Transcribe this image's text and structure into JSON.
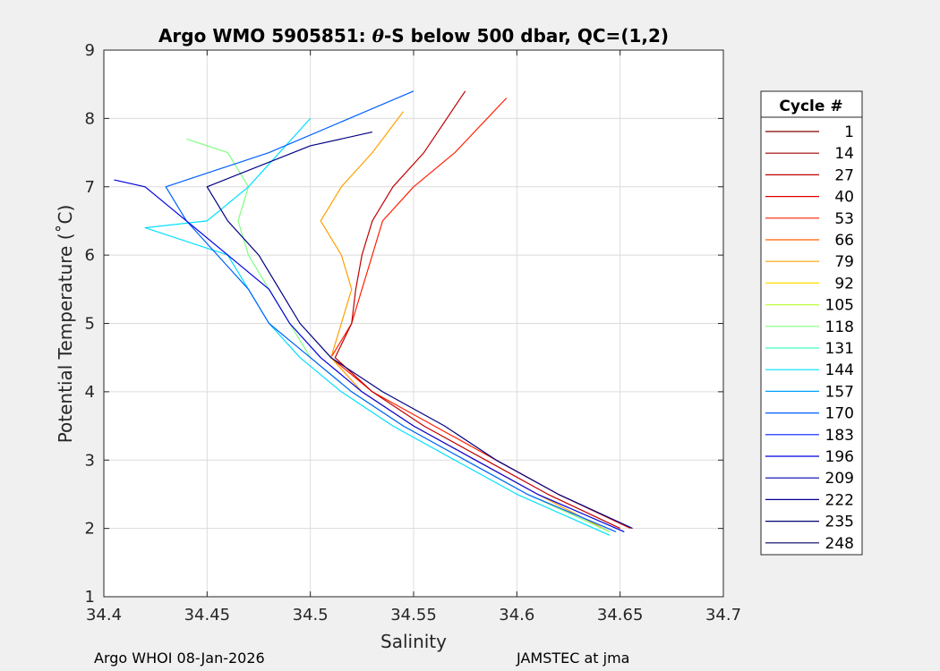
{
  "chart_data": {
    "type": "line",
    "title_parts": {
      "prefix": "Argo WMO 5905851: ",
      "theta": "θ",
      "suffix": "-S below 500 dbar,  QC=(1,2)"
    },
    "xlabel": "Salinity",
    "ylabel": "Potential Temperature (˚C)",
    "xlim": [
      34.4,
      34.7
    ],
    "ylim": [
      1,
      9
    ],
    "x_ticks": [
      34.4,
      34.45,
      34.5,
      34.55,
      34.6,
      34.65,
      34.7
    ],
    "x_tick_labels": [
      "34.4",
      "34.45",
      "34.5",
      "34.55",
      "34.6",
      "34.65",
      "34.7"
    ],
    "y_ticks": [
      1,
      2,
      3,
      4,
      5,
      6,
      7,
      8,
      9
    ],
    "y_tick_labels": [
      "1",
      "2",
      "3",
      "4",
      "5",
      "6",
      "7",
      "8",
      "9"
    ],
    "grid": true,
    "legend_title": "Cycle #",
    "legend_position": "right",
    "series": [
      {
        "name": "1",
        "color": "#800000"
      },
      {
        "name": "14",
        "color": "#a00000"
      },
      {
        "name": "27",
        "color": "#c00000"
      },
      {
        "name": "40",
        "color": "#e00000"
      },
      {
        "name": "53",
        "color": "#ff2000"
      },
      {
        "name": "66",
        "color": "#ff6000"
      },
      {
        "name": "79",
        "color": "#ffa000"
      },
      {
        "name": "92",
        "color": "#ffe000"
      },
      {
        "name": "105",
        "color": "#c0ff40"
      },
      {
        "name": "118",
        "color": "#80ff80"
      },
      {
        "name": "131",
        "color": "#40ffc0"
      },
      {
        "name": "144",
        "color": "#00e0ff"
      },
      {
        "name": "157",
        "color": "#00a0ff"
      },
      {
        "name": "170",
        "color": "#0060ff"
      },
      {
        "name": "183",
        "color": "#0020ff"
      },
      {
        "name": "196",
        "color": "#0000e0"
      },
      {
        "name": "209",
        "color": "#0000b0"
      },
      {
        "name": "222",
        "color": "#000090"
      },
      {
        "name": "235",
        "color": "#000070"
      },
      {
        "name": "248",
        "color": "#000060"
      }
    ],
    "profiles": [
      {
        "color": "#ff2000",
        "points": [
          [
            34.655,
            2.0
          ],
          [
            34.62,
            2.5
          ],
          [
            34.59,
            3.0
          ],
          [
            34.56,
            3.5
          ],
          [
            34.53,
            4.0
          ],
          [
            34.51,
            4.5
          ],
          [
            34.52,
            5.0
          ],
          [
            34.525,
            5.5
          ],
          [
            34.53,
            6.0
          ],
          [
            34.535,
            6.5
          ],
          [
            34.55,
            7.0
          ],
          [
            34.57,
            7.5
          ],
          [
            34.595,
            8.3
          ]
        ]
      },
      {
        "color": "#c00000",
        "points": [
          [
            34.65,
            2.0
          ],
          [
            34.615,
            2.5
          ],
          [
            34.585,
            3.0
          ],
          [
            34.555,
            3.5
          ],
          [
            34.53,
            4.0
          ],
          [
            34.512,
            4.5
          ],
          [
            34.52,
            5.0
          ],
          [
            34.522,
            5.5
          ],
          [
            34.525,
            6.0
          ],
          [
            34.53,
            6.5
          ],
          [
            34.54,
            7.0
          ],
          [
            34.555,
            7.5
          ],
          [
            34.575,
            8.4
          ]
        ]
      },
      {
        "color": "#ffa000",
        "points": [
          [
            34.645,
            1.95
          ],
          [
            34.61,
            2.5
          ],
          [
            34.58,
            3.0
          ],
          [
            34.55,
            3.5
          ],
          [
            34.525,
            4.0
          ],
          [
            34.51,
            4.5
          ],
          [
            34.515,
            5.0
          ],
          [
            34.52,
            5.5
          ],
          [
            34.515,
            6.0
          ],
          [
            34.505,
            6.5
          ],
          [
            34.515,
            7.0
          ],
          [
            34.53,
            7.5
          ],
          [
            34.545,
            8.1
          ]
        ]
      },
      {
        "color": "#80ff80",
        "points": [
          [
            34.645,
            1.95
          ],
          [
            34.605,
            2.5
          ],
          [
            34.575,
            3.0
          ],
          [
            34.545,
            3.5
          ],
          [
            34.52,
            4.0
          ],
          [
            34.5,
            4.5
          ],
          [
            34.49,
            5.0
          ],
          [
            34.48,
            5.5
          ],
          [
            34.47,
            6.0
          ],
          [
            34.465,
            6.5
          ],
          [
            34.47,
            7.0
          ],
          [
            34.46,
            7.5
          ],
          [
            34.44,
            7.7
          ]
        ]
      },
      {
        "color": "#00e0ff",
        "points": [
          [
            34.645,
            1.9
          ],
          [
            34.6,
            2.5
          ],
          [
            34.57,
            3.0
          ],
          [
            34.54,
            3.5
          ],
          [
            34.515,
            4.0
          ],
          [
            34.495,
            4.5
          ],
          [
            34.48,
            5.0
          ],
          [
            34.47,
            5.5
          ],
          [
            34.46,
            6.0
          ],
          [
            34.43,
            6.3
          ],
          [
            34.42,
            6.4
          ],
          [
            34.45,
            6.5
          ],
          [
            34.47,
            7.0
          ],
          [
            34.5,
            8.0
          ]
        ]
      },
      {
        "color": "#0060ff",
        "points": [
          [
            34.648,
            1.95
          ],
          [
            34.605,
            2.5
          ],
          [
            34.575,
            3.0
          ],
          [
            34.545,
            3.5
          ],
          [
            34.52,
            4.0
          ],
          [
            34.5,
            4.5
          ],
          [
            34.48,
            5.0
          ],
          [
            34.47,
            5.5
          ],
          [
            34.455,
            6.0
          ],
          [
            34.44,
            6.5
          ],
          [
            34.43,
            7.0
          ],
          [
            34.48,
            7.5
          ],
          [
            34.55,
            8.4
          ]
        ]
      },
      {
        "color": "#0000e0",
        "points": [
          [
            34.652,
            1.95
          ],
          [
            34.61,
            2.5
          ],
          [
            34.58,
            3.0
          ],
          [
            34.55,
            3.5
          ],
          [
            34.525,
            4.0
          ],
          [
            34.505,
            4.5
          ],
          [
            34.49,
            5.0
          ],
          [
            34.48,
            5.5
          ],
          [
            34.46,
            6.0
          ],
          [
            34.44,
            6.5
          ],
          [
            34.42,
            7.0
          ],
          [
            34.405,
            7.1
          ]
        ]
      },
      {
        "color": "#000080",
        "points": [
          [
            34.656,
            2.0
          ],
          [
            34.62,
            2.5
          ],
          [
            34.59,
            3.0
          ],
          [
            34.565,
            3.5
          ],
          [
            34.535,
            4.0
          ],
          [
            34.51,
            4.5
          ],
          [
            34.495,
            5.0
          ],
          [
            34.485,
            5.5
          ],
          [
            34.475,
            6.0
          ],
          [
            34.46,
            6.5
          ],
          [
            34.45,
            7.0
          ],
          [
            34.5,
            7.6
          ],
          [
            34.53,
            7.8
          ]
        ]
      }
    ]
  },
  "footer": {
    "left": "Argo WHOI 08-Jan-2026",
    "right": "JAMSTEC at jma"
  }
}
